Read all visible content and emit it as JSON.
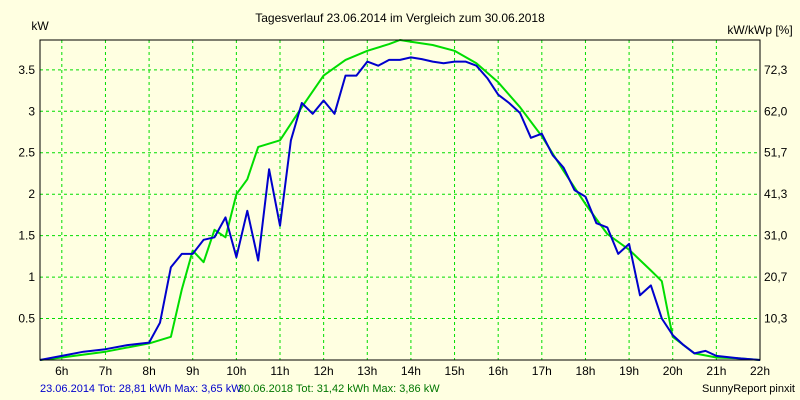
{
  "chart_data": {
    "type": "line",
    "title": "Tagesverlauf 23.06.2014 im Vergleich zum 30.06.2018",
    "ylabel": "kW",
    "ylabel_right": "kW/kWp [%]",
    "xlim": [
      5.5,
      22.0
    ],
    "ylim": [
      0,
      3.86
    ],
    "x_ticks": [
      6,
      7,
      8,
      9,
      10,
      11,
      12,
      13,
      14,
      15,
      16,
      17,
      18,
      19,
      20,
      21,
      22
    ],
    "x_tick_labels": [
      "6h",
      "7h",
      "8h",
      "9h",
      "10h",
      "11h",
      "12h",
      "13h",
      "14h",
      "15h",
      "16h",
      "17h",
      "18h",
      "19h",
      "20h",
      "21h",
      "22h"
    ],
    "y_ticks": [
      0.5,
      1,
      1.5,
      2,
      2.5,
      3,
      3.5
    ],
    "y_tick_labels": [
      "0.5",
      "1",
      "1.5",
      "2",
      "2.5",
      "3",
      "3.5"
    ],
    "y_ticks_right": [
      0.5,
      1,
      1.5,
      2,
      2.5,
      3,
      3.5
    ],
    "y_tick_labels_right": [
      "10,3",
      "20,7",
      "31,0",
      "41,3",
      "51,7",
      "62,0",
      "72,3"
    ],
    "grid": true,
    "series": [
      {
        "name": "23.06.2014",
        "color": "#0000cc",
        "x": [
          5.5,
          6.0,
          6.5,
          7.0,
          7.5,
          8.0,
          8.25,
          8.5,
          8.75,
          9.0,
          9.25,
          9.5,
          9.75,
          10.0,
          10.25,
          10.5,
          10.75,
          11.0,
          11.25,
          11.5,
          11.75,
          12.0,
          12.25,
          12.5,
          12.75,
          13.0,
          13.25,
          13.5,
          13.75,
          14.0,
          14.25,
          14.5,
          14.75,
          15.0,
          15.25,
          15.5,
          15.75,
          16.0,
          16.25,
          16.5,
          16.75,
          17.0,
          17.25,
          17.5,
          17.75,
          18.0,
          18.25,
          18.5,
          18.75,
          19.0,
          19.25,
          19.5,
          19.75,
          20.0,
          20.25,
          20.5,
          20.75,
          21.0,
          21.5,
          22.0
        ],
        "y": [
          0.0,
          0.05,
          0.1,
          0.13,
          0.18,
          0.21,
          0.45,
          1.12,
          1.28,
          1.28,
          1.45,
          1.48,
          1.72,
          1.24,
          1.8,
          1.2,
          2.3,
          1.62,
          2.65,
          3.1,
          2.97,
          3.13,
          2.97,
          3.43,
          3.43,
          3.6,
          3.55,
          3.62,
          3.62,
          3.65,
          3.63,
          3.6,
          3.58,
          3.6,
          3.6,
          3.55,
          3.4,
          3.2,
          3.1,
          2.98,
          2.68,
          2.73,
          2.47,
          2.32,
          2.05,
          1.97,
          1.65,
          1.6,
          1.28,
          1.4,
          0.78,
          0.9,
          0.5,
          0.3,
          0.18,
          0.08,
          0.11,
          0.05,
          0.02,
          0.0
        ]
      },
      {
        "name": "30.06.2018",
        "color": "#00dd00",
        "x": [
          5.5,
          6.0,
          7.0,
          8.0,
          8.5,
          8.75,
          9.0,
          9.25,
          9.5,
          9.75,
          10.0,
          10.25,
          10.5,
          11.0,
          11.5,
          12.0,
          12.5,
          13.0,
          13.5,
          13.75,
          14.0,
          14.5,
          15.0,
          15.5,
          16.0,
          16.5,
          17.0,
          17.5,
          18.0,
          18.5,
          19.0,
          19.5,
          19.75,
          20.0,
          20.5,
          21.0,
          21.5,
          22.0
        ],
        "y": [
          0.0,
          0.03,
          0.1,
          0.2,
          0.28,
          0.85,
          1.32,
          1.18,
          1.57,
          1.48,
          2.0,
          2.18,
          2.57,
          2.65,
          3.05,
          3.43,
          3.62,
          3.73,
          3.81,
          3.86,
          3.84,
          3.8,
          3.73,
          3.58,
          3.35,
          3.05,
          2.7,
          2.28,
          1.88,
          1.52,
          1.33,
          1.08,
          0.95,
          0.28,
          0.08,
          0.03,
          0.02,
          0.0
        ]
      }
    ],
    "legend": {
      "entry1_text": "23.06.2014 Tot: 28,81 kWh Max: 3,65 kW",
      "entry2_text": "30.06.2018 Tot: 31,42 kWh Max: 3,86 kW",
      "credit": "SunnyReport pinxit"
    }
  }
}
